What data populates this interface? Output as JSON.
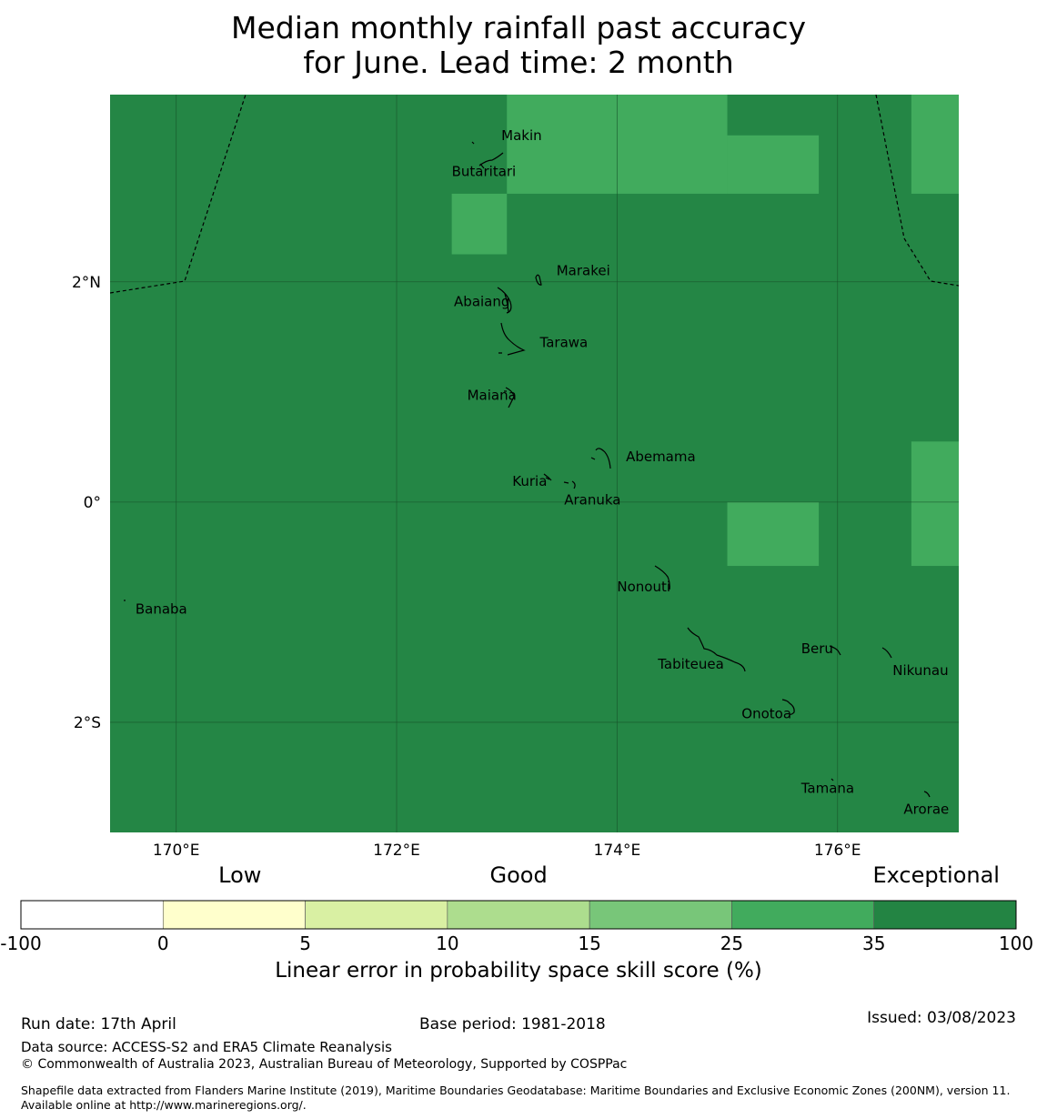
{
  "title": {
    "line1": "Median monthly rainfall past accuracy",
    "line2": "for June. Lead time: 2 month"
  },
  "map": {
    "lon_range": [
      169.4,
      177.1
    ],
    "lat_range": [
      -3.0,
      3.7
    ],
    "x_ticks": [
      {
        "lon": 170,
        "label": "170°E"
      },
      {
        "lon": 172,
        "label": "172°E"
      },
      {
        "lon": 174,
        "label": "174°E"
      },
      {
        "lon": 176,
        "label": "176°E"
      }
    ],
    "y_ticks": [
      {
        "lat": 2,
        "label": "2°N"
      },
      {
        "lat": 0,
        "label": "0°"
      },
      {
        "lat": -2,
        "label": "2°S"
      }
    ],
    "background_color": "#248645",
    "highlight_color": "#41ab5d",
    "grid_line_color": "#17502a",
    "highlight_cells": [
      {
        "lon": [
          173.0,
          174.0
        ],
        "lat": [
          2.8,
          3.7
        ]
      },
      {
        "lon": [
          174.0,
          175.0
        ],
        "lat": [
          2.8,
          3.7
        ]
      },
      {
        "lon": [
          175.0,
          175.83
        ],
        "lat": [
          2.8,
          3.33
        ]
      },
      {
        "lon": [
          172.5,
          173.0
        ],
        "lat": [
          2.25,
          2.8
        ]
      },
      {
        "lon": [
          176.67,
          177.1
        ],
        "lat": [
          2.8,
          3.7
        ]
      },
      {
        "lon": [
          176.67,
          177.1
        ],
        "lat": [
          -0.58,
          0.55
        ]
      },
      {
        "lon": [
          175.0,
          175.83
        ],
        "lat": [
          -0.58,
          0.0
        ]
      }
    ],
    "places": [
      {
        "name": "Makin",
        "lon": 172.95,
        "lat": 3.33
      },
      {
        "name": "Butaritari",
        "lon": 172.5,
        "lat": 3.0
      },
      {
        "name": "Marakei",
        "lon": 173.45,
        "lat": 2.1
      },
      {
        "name": "Abaiang",
        "lon": 172.52,
        "lat": 1.82
      },
      {
        "name": "Tarawa",
        "lon": 173.3,
        "lat": 1.45
      },
      {
        "name": "Maiana",
        "lon": 172.64,
        "lat": 0.97
      },
      {
        "name": "Abemama",
        "lon": 174.08,
        "lat": 0.41
      },
      {
        "name": "Kuria",
        "lon": 173.05,
        "lat": 0.19
      },
      {
        "name": "Aranuka",
        "lon": 173.52,
        "lat": 0.02
      },
      {
        "name": "Nonouti",
        "lon": 174.0,
        "lat": -0.77
      },
      {
        "name": "Banaba",
        "lon": 169.63,
        "lat": -0.97
      },
      {
        "name": "Tabiteuea",
        "lon": 174.37,
        "lat": -1.47
      },
      {
        "name": "Beru",
        "lon": 175.67,
        "lat": -1.33
      },
      {
        "name": "Nikunau",
        "lon": 176.5,
        "lat": -1.53
      },
      {
        "name": "Onotoa",
        "lon": 175.13,
        "lat": -1.92
      },
      {
        "name": "Tamana",
        "lon": 175.67,
        "lat": -2.6
      },
      {
        "name": "Arorae",
        "lon": 176.6,
        "lat": -2.79
      }
    ]
  },
  "colorbar": {
    "categories": [
      {
        "label": "Low",
        "pos": 0.22
      },
      {
        "label": "Good",
        "pos": 0.5
      },
      {
        "label": "Exceptional",
        "pos": 0.92
      }
    ],
    "boundaries": [
      "-100",
      "0",
      "5",
      "10",
      "15",
      "25",
      "35",
      "100"
    ],
    "colors": [
      "#ffffff",
      "#ffffcc",
      "#d9f0a3",
      "#addd8e",
      "#78c679",
      "#41ab5d",
      "#238443"
    ],
    "label": "Linear error in probability space skill score (%)"
  },
  "footer": {
    "run_date": "Run date: 17th April",
    "base_period": "Base period: 1981-2018",
    "issued": "Issued: 03/08/2023",
    "data_source": "Data source: ACCESS-S2 and ERA5 Climate Reanalysis",
    "copyright": "© Commonwealth of Australia 2023, Australian Bureau of Meteorology, Supported by COSPPac",
    "shapefile": "Shapefile data extracted from Flanders Marine Institute (2019), Maritime Boundaries Geodatabase: Maritime Boundaries and Exclusive Economic Zones (200NM), version 11. Available online at http://www.marineregions.org/."
  }
}
